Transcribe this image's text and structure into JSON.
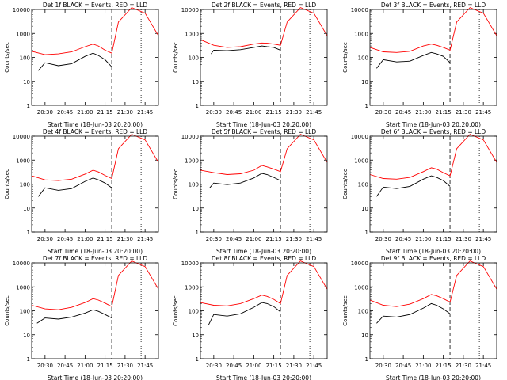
{
  "figure": {
    "background": "#ffffff",
    "events_color": "#000000",
    "lld_color": "#ff0000",
    "start_time_label": "Start Time (18-Jun-03 20:20:00)",
    "ylabel": "Counts/sec",
    "yticks": [
      "1",
      "10",
      "100",
      "1000",
      "10000"
    ]
  },
  "chart_data": [
    {
      "type": "line",
      "title": "Det 1f BLACK = Events, RED = LLD",
      "xlabel": "Start Time (18-Jun-03 20:20:00)",
      "ylabel": "Counts/sec",
      "xticks": [
        "20:30",
        "20:45",
        "21:00",
        "21:15",
        "21:30",
        "21:45"
      ],
      "ylim": [
        1,
        10000
      ],
      "yscale": "log",
      "event_markers": [
        "21:20",
        "21:42"
      ],
      "series": [
        {
          "name": "LLD",
          "x": [
            "20:20",
            "20:30",
            "20:40",
            "20:50",
            "21:00",
            "21:06",
            "21:10",
            "21:15",
            "21:20",
            "21:25",
            "21:35",
            "21:45",
            "21:55"
          ],
          "values": [
            180,
            130,
            140,
            170,
            280,
            360,
            300,
            200,
            150,
            3000,
            12000,
            7000,
            800
          ]
        },
        {
          "name": "Events",
          "x": [
            "20:25",
            "20:30",
            "20:40",
            "20:50",
            "21:00",
            "21:06",
            "21:10",
            "21:15",
            "21:20"
          ],
          "values": [
            28,
            60,
            45,
            55,
            110,
            150,
            120,
            80,
            40
          ]
        }
      ]
    },
    {
      "type": "line",
      "title": "Det 2f BLACK = Events, RED = LLD",
      "xlabel": "Start Time (18-Jun-03 20:20:00)",
      "ylabel": "Counts/sec",
      "xticks": [
        "20:30",
        "20:45",
        "21:00",
        "21:15",
        "21:30",
        "21:45"
      ],
      "ylim": [
        1,
        10000
      ],
      "yscale": "log",
      "event_markers": [
        "21:20",
        "21:42"
      ],
      "series": [
        {
          "name": "LLD",
          "x": [
            "20:20",
            "20:30",
            "20:40",
            "20:50",
            "21:00",
            "21:06",
            "21:10",
            "21:15",
            "21:20",
            "21:25",
            "21:35",
            "21:45",
            "21:55"
          ],
          "values": [
            550,
            320,
            260,
            280,
            360,
            400,
            390,
            360,
            320,
            3000,
            12000,
            7000,
            800
          ]
        },
        {
          "name": "Events",
          "x": [
            "20:28",
            "20:30",
            "20:40",
            "20:50",
            "21:00",
            "21:06",
            "21:10",
            "21:15",
            "21:20"
          ],
          "values": [
            140,
            200,
            190,
            210,
            260,
            300,
            280,
            260,
            200
          ]
        }
      ]
    },
    {
      "type": "line",
      "title": "Det 3f BLACK = Events, RED = LLD",
      "xlabel": "Start Time (18-Jun-03 20:20:00)",
      "ylabel": "Counts/sec",
      "xticks": [
        "20:30",
        "20:45",
        "21:00",
        "21:15",
        "21:30",
        "21:45"
      ],
      "ylim": [
        1,
        10000
      ],
      "yscale": "log",
      "event_markers": [
        "21:20",
        "21:42"
      ],
      "series": [
        {
          "name": "LLD",
          "x": [
            "20:20",
            "20:30",
            "20:40",
            "20:50",
            "21:00",
            "21:06",
            "21:10",
            "21:15",
            "21:20",
            "21:25",
            "21:35",
            "21:45",
            "21:55"
          ],
          "values": [
            260,
            170,
            160,
            180,
            300,
            360,
            320,
            260,
            200,
            3000,
            12000,
            7000,
            800
          ]
        },
        {
          "name": "Events",
          "x": [
            "20:25",
            "20:30",
            "20:40",
            "20:50",
            "21:00",
            "21:06",
            "21:10",
            "21:15",
            "21:20"
          ],
          "values": [
            35,
            80,
            65,
            70,
            120,
            160,
            140,
            110,
            60
          ]
        }
      ]
    },
    {
      "type": "line",
      "title": "Det 4f BLACK = Events, RED = LLD",
      "xlabel": "Start Time (18-Jun-03 20:20:00)",
      "ylabel": "Counts/sec",
      "xticks": [
        "20:30",
        "20:45",
        "21:00",
        "21:15",
        "21:30",
        "21:45"
      ],
      "ylim": [
        1,
        10000
      ],
      "yscale": "log",
      "event_markers": [
        "21:20",
        "21:42"
      ],
      "series": [
        {
          "name": "LLD",
          "x": [
            "20:20",
            "20:30",
            "20:40",
            "20:50",
            "21:00",
            "21:06",
            "21:10",
            "21:15",
            "21:20",
            "21:25",
            "21:35",
            "21:45",
            "21:55"
          ],
          "values": [
            220,
            150,
            140,
            160,
            260,
            380,
            320,
            230,
            170,
            3000,
            12000,
            7000,
            800
          ]
        },
        {
          "name": "Events",
          "x": [
            "20:25",
            "20:30",
            "20:40",
            "20:50",
            "21:00",
            "21:06",
            "21:10",
            "21:15",
            "21:20"
          ],
          "values": [
            30,
            70,
            55,
            65,
            130,
            180,
            150,
            110,
            70
          ]
        }
      ]
    },
    {
      "type": "line",
      "title": "Det 5f BLACK = Events, RED = LLD",
      "xlabel": "Start Time (18-Jun-03 20:20:00)",
      "ylabel": "Counts/sec",
      "xticks": [
        "20:30",
        "20:45",
        "21:00",
        "21:15",
        "21:30",
        "21:45"
      ],
      "ylim": [
        1,
        10000
      ],
      "yscale": "log",
      "event_markers": [
        "21:20",
        "21:42"
      ],
      "series": [
        {
          "name": "LLD",
          "x": [
            "20:20",
            "20:30",
            "20:40",
            "20:50",
            "21:00",
            "21:06",
            "21:10",
            "21:15",
            "21:20",
            "21:25",
            "21:35",
            "21:45",
            "21:55"
          ],
          "values": [
            380,
            300,
            250,
            270,
            380,
            600,
            520,
            420,
            330,
            3000,
            12000,
            7000,
            800
          ]
        },
        {
          "name": "Events",
          "x": [
            "20:27",
            "20:30",
            "20:40",
            "20:50",
            "21:00",
            "21:06",
            "21:10",
            "21:15",
            "21:20"
          ],
          "values": [
            70,
            110,
            95,
            110,
            180,
            280,
            250,
            190,
            140
          ]
        }
      ]
    },
    {
      "type": "line",
      "title": "Det 6f BLACK = Events, RED = LLD",
      "xlabel": "Start Time (18-Jun-03 20:20:00)",
      "ylabel": "Counts/sec",
      "xticks": [
        "20:30",
        "20:45",
        "21:00",
        "21:15",
        "21:30",
        "21:45"
      ],
      "ylim": [
        1,
        10000
      ],
      "yscale": "log",
      "event_markers": [
        "21:20",
        "21:42"
      ],
      "series": [
        {
          "name": "LLD",
          "x": [
            "20:20",
            "20:30",
            "20:40",
            "20:50",
            "21:00",
            "21:06",
            "21:10",
            "21:15",
            "21:20",
            "21:25",
            "21:35",
            "21:45",
            "21:55"
          ],
          "values": [
            250,
            170,
            160,
            190,
            330,
            480,
            420,
            300,
            220,
            3000,
            12000,
            7000,
            800
          ]
        },
        {
          "name": "Events",
          "x": [
            "20:25",
            "20:30",
            "20:40",
            "20:50",
            "21:00",
            "21:06",
            "21:10",
            "21:15",
            "21:20"
          ],
          "values": [
            30,
            75,
            65,
            80,
            160,
            220,
            190,
            140,
            80
          ]
        }
      ]
    },
    {
      "type": "line",
      "title": "Det 7f BLACK = Events, RED = LLD",
      "xlabel": "Start Time (18-Jun-03 20:20:00)",
      "ylabel": "Counts/sec",
      "xticks": [
        "20:30",
        "20:45",
        "21:00",
        "21:15",
        "21:30",
        "21:45"
      ],
      "ylim": [
        1,
        10000
      ],
      "yscale": "log",
      "event_markers": [
        "21:20",
        "21:42"
      ],
      "series": [
        {
          "name": "LLD",
          "x": [
            "20:20",
            "20:30",
            "20:40",
            "20:50",
            "21:00",
            "21:06",
            "21:10",
            "21:15",
            "21:20",
            "21:25",
            "21:35",
            "21:45",
            "21:55"
          ],
          "values": [
            170,
            120,
            110,
            140,
            220,
            320,
            280,
            210,
            150,
            3000,
            12000,
            7000,
            800
          ]
        },
        {
          "name": "Events",
          "x": [
            "20:24",
            "20:30",
            "20:40",
            "20:50",
            "21:00",
            "21:06",
            "21:10",
            "21:15",
            "21:20"
          ],
          "values": [
            30,
            50,
            45,
            55,
            80,
            110,
            95,
            70,
            50
          ]
        }
      ]
    },
    {
      "type": "line",
      "title": "Det 8f BLACK = Events, RED = LLD",
      "xlabel": "Start Time (18-Jun-03 20:20:00)",
      "ylabel": "Counts/sec",
      "xticks": [
        "20:30",
        "20:45",
        "21:00",
        "21:15",
        "21:30",
        "21:45"
      ],
      "ylim": [
        1,
        10000
      ],
      "yscale": "log",
      "event_markers": [
        "21:20",
        "21:42"
      ],
      "series": [
        {
          "name": "LLD",
          "x": [
            "20:20",
            "20:30",
            "20:40",
            "20:50",
            "21:00",
            "21:06",
            "21:10",
            "21:15",
            "21:20",
            "21:25",
            "21:35",
            "21:45",
            "21:55"
          ],
          "values": [
            220,
            170,
            160,
            200,
            320,
            450,
            400,
            300,
            200,
            3000,
            12000,
            7000,
            800
          ]
        },
        {
          "name": "Events",
          "x": [
            "20:26",
            "20:30",
            "20:40",
            "20:50",
            "21:00",
            "21:06",
            "21:10",
            "21:15",
            "21:20"
          ],
          "values": [
            25,
            70,
            60,
            75,
            140,
            220,
            200,
            150,
            90
          ]
        }
      ]
    },
    {
      "type": "line",
      "title": "Det 9f BLACK = Events, RED = LLD",
      "xlabel": "Start Time (18-Jun-03 20:20:00)",
      "ylabel": "Counts/sec",
      "xticks": [
        "20:30",
        "20:45",
        "21:00",
        "21:15",
        "21:30",
        "21:45"
      ],
      "ylim": [
        1,
        10000
      ],
      "yscale": "log",
      "event_markers": [
        "21:20",
        "21:42"
      ],
      "series": [
        {
          "name": "LLD",
          "x": [
            "20:20",
            "20:30",
            "20:40",
            "20:50",
            "21:00",
            "21:06",
            "21:10",
            "21:15",
            "21:20",
            "21:25",
            "21:35",
            "21:45",
            "21:55"
          ],
          "values": [
            280,
            170,
            150,
            190,
            320,
            480,
            420,
            320,
            230,
            3000,
            12000,
            7000,
            800
          ]
        },
        {
          "name": "Events",
          "x": [
            "20:25",
            "20:30",
            "20:40",
            "20:50",
            "21:00",
            "21:06",
            "21:10",
            "21:15",
            "21:20"
          ],
          "values": [
            30,
            60,
            55,
            70,
            130,
            200,
            170,
            120,
            75
          ]
        }
      ]
    }
  ]
}
